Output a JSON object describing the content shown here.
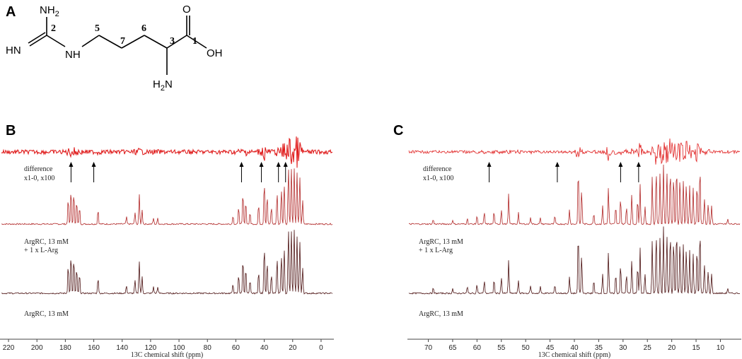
{
  "panels": {
    "a": "A",
    "b": "B",
    "c": "C"
  },
  "molecule": {
    "atoms": {
      "nh2_top": "NH",
      "nh2_top_sub": "2",
      "hn": "HN",
      "nh": "NH",
      "o": "O",
      "oh": "OH",
      "h2n": "H",
      "h2n_sub": "2",
      "h2n_n": "N"
    },
    "numbers": [
      "2",
      "5",
      "7",
      "6",
      "3",
      "1"
    ]
  },
  "colors": {
    "difference": "#e02020",
    "middle": "#b02525",
    "bottom": "#4a1010"
  },
  "chart_data": [
    {
      "type": "line",
      "xlabel": "13C chemical shift (ppm)",
      "xlim": [
        225,
        -8
      ],
      "ticks": [
        220,
        200,
        180,
        160,
        140,
        120,
        100,
        80,
        60,
        40,
        20,
        0
      ],
      "series": [
        {
          "label": "difference",
          "label2": "x1-0,  x100",
          "kind": "difference"
        },
        {
          "label": "ArgRC, 13 mM",
          "label2": "+ 1 x L-Arg",
          "kind": "spectrum"
        },
        {
          "label": "ArgRC, 13 mM",
          "kind": "spectrum"
        }
      ],
      "arrows_ppm": [
        176,
        160,
        56,
        42,
        30,
        25
      ],
      "peaks": [
        {
          "ppm": 178,
          "h": 0.45
        },
        {
          "ppm": 176,
          "h": 0.6
        },
        {
          "ppm": 174,
          "h": 0.55
        },
        {
          "ppm": 172,
          "h": 0.4
        },
        {
          "ppm": 170,
          "h": 0.3
        },
        {
          "ppm": 157,
          "h": 0.25
        },
        {
          "ppm": 137,
          "h": 0.12
        },
        {
          "ppm": 131,
          "h": 0.2
        },
        {
          "ppm": 128,
          "h": 0.5
        },
        {
          "ppm": 126,
          "h": 0.25
        },
        {
          "ppm": 118,
          "h": 0.1
        },
        {
          "ppm": 115,
          "h": 0.1
        },
        {
          "ppm": 62,
          "h": 0.15
        },
        {
          "ppm": 58,
          "h": 0.3
        },
        {
          "ppm": 55,
          "h": 0.55
        },
        {
          "ppm": 53,
          "h": 0.4
        },
        {
          "ppm": 50,
          "h": 0.2
        },
        {
          "ppm": 44,
          "h": 0.35
        },
        {
          "ppm": 40,
          "h": 0.75
        },
        {
          "ppm": 38,
          "h": 0.5
        },
        {
          "ppm": 35,
          "h": 0.3
        },
        {
          "ppm": 31,
          "h": 0.55
        },
        {
          "ppm": 28,
          "h": 0.6
        },
        {
          "ppm": 26,
          "h": 0.7
        },
        {
          "ppm": 23,
          "h": 1.0
        },
        {
          "ppm": 21,
          "h": 1.0
        },
        {
          "ppm": 19,
          "h": 1.0
        },
        {
          "ppm": 17,
          "h": 0.9
        },
        {
          "ppm": 15,
          "h": 0.8
        },
        {
          "ppm": 13,
          "h": 0.4
        }
      ]
    },
    {
      "type": "line",
      "xlabel": "13C chemical shift (ppm)",
      "xlim": [
        74,
        6
      ],
      "ticks": [
        70,
        65,
        60,
        55,
        50,
        45,
        40,
        35,
        30,
        25,
        20,
        15,
        10
      ],
      "series": [
        {
          "label": "difference",
          "label2": "x1-0,  x100",
          "kind": "difference"
        },
        {
          "label": "ArgRC, 13 mM",
          "label2": "+ 1 x L-Arg",
          "kind": "spectrum"
        },
        {
          "label": "ArgRC, 13 mM",
          "kind": "spectrum"
        }
      ],
      "arrows_ppm": [
        57.5,
        43.5,
        30.5,
        26.8
      ],
      "peaks": [
        {
          "ppm": 69,
          "h": 0.08
        },
        {
          "ppm": 65,
          "h": 0.07
        },
        {
          "ppm": 62,
          "h": 0.1
        },
        {
          "ppm": 60,
          "h": 0.14
        },
        {
          "ppm": 58.5,
          "h": 0.2
        },
        {
          "ppm": 56.5,
          "h": 0.22
        },
        {
          "ppm": 55,
          "h": 0.25
        },
        {
          "ppm": 53.5,
          "h": 0.5
        },
        {
          "ppm": 51.5,
          "h": 0.2
        },
        {
          "ppm": 49,
          "h": 0.12
        },
        {
          "ppm": 47,
          "h": 0.1
        },
        {
          "ppm": 44,
          "h": 0.14
        },
        {
          "ppm": 41,
          "h": 0.25
        },
        {
          "ppm": 39.2,
          "h": 0.95
        },
        {
          "ppm": 38.5,
          "h": 0.6
        },
        {
          "ppm": 36,
          "h": 0.2
        },
        {
          "ppm": 34.2,
          "h": 0.3
        },
        {
          "ppm": 33,
          "h": 0.62
        },
        {
          "ppm": 31.5,
          "h": 0.3
        },
        {
          "ppm": 30.5,
          "h": 0.45
        },
        {
          "ppm": 29.3,
          "h": 0.3
        },
        {
          "ppm": 28.2,
          "h": 0.5
        },
        {
          "ppm": 27,
          "h": 0.42
        },
        {
          "ppm": 26.5,
          "h": 0.68
        },
        {
          "ppm": 25.5,
          "h": 0.3
        },
        {
          "ppm": 24,
          "h": 0.8
        },
        {
          "ppm": 23.2,
          "h": 0.95
        },
        {
          "ppm": 22.4,
          "h": 0.85
        },
        {
          "ppm": 21.7,
          "h": 1.0
        },
        {
          "ppm": 21,
          "h": 0.9
        },
        {
          "ppm": 20.3,
          "h": 0.95
        },
        {
          "ppm": 19.6,
          "h": 0.85
        },
        {
          "ppm": 19,
          "h": 1.0
        },
        {
          "ppm": 18.3,
          "h": 0.8
        },
        {
          "ppm": 17.6,
          "h": 0.75
        },
        {
          "ppm": 17,
          "h": 0.7
        },
        {
          "ppm": 16.3,
          "h": 0.65
        },
        {
          "ppm": 15.6,
          "h": 0.6
        },
        {
          "ppm": 14.8,
          "h": 0.7
        },
        {
          "ppm": 14.2,
          "h": 1.0
        },
        {
          "ppm": 13.3,
          "h": 0.45
        },
        {
          "ppm": 12.5,
          "h": 0.35
        },
        {
          "ppm": 11.8,
          "h": 0.3
        },
        {
          "ppm": 8.5,
          "h": 0.08
        }
      ]
    }
  ]
}
